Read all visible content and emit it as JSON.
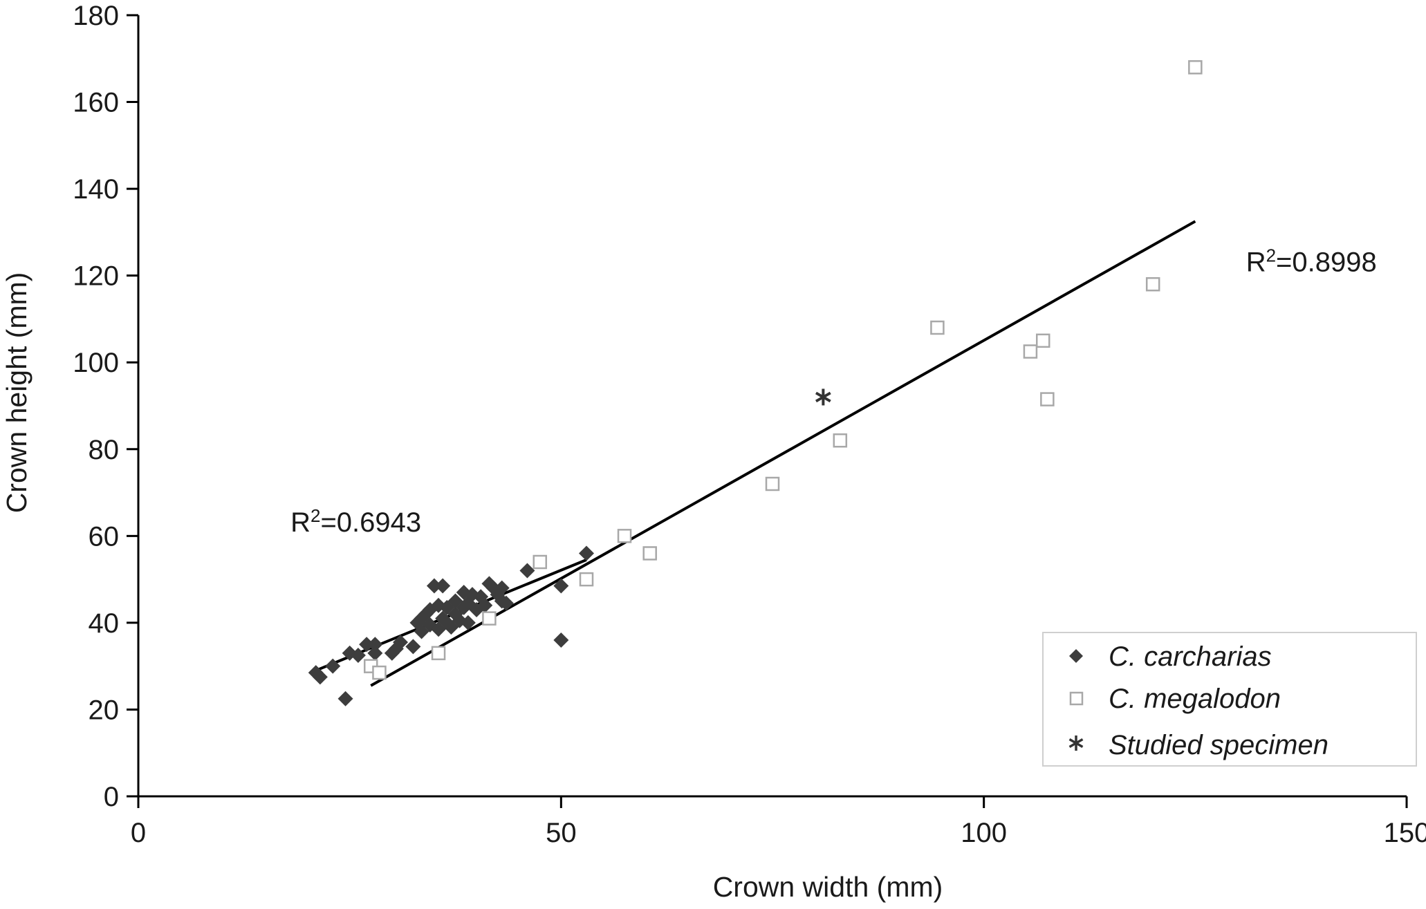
{
  "chart_data": {
    "type": "scatter",
    "xlabel": "Crown width (mm)",
    "ylabel": "Crown height (mm)",
    "xlim": [
      0,
      150
    ],
    "ylim": [
      0,
      180
    ],
    "xticks": [
      0,
      50,
      100,
      150
    ],
    "yticks": [
      0,
      20,
      40,
      60,
      80,
      100,
      120,
      140,
      160,
      180
    ],
    "grid": false,
    "legend_position": "bottom-right",
    "colors": {
      "carcharias": "#3d3d3d",
      "megalodon_stroke": "#a8a8a8",
      "studied": "#333333",
      "trend": "#000000"
    },
    "series": [
      {
        "name": "C. carcharias",
        "marker": "diamond",
        "points": [
          [
            21.0,
            28.5
          ],
          [
            21.5,
            27.5
          ],
          [
            23.0,
            30.0
          ],
          [
            24.5,
            22.5
          ],
          [
            25.0,
            33.0
          ],
          [
            26.0,
            32.5
          ],
          [
            27.0,
            35.0
          ],
          [
            28.0,
            33.0
          ],
          [
            28.0,
            35.0
          ],
          [
            30.0,
            33.0
          ],
          [
            30.5,
            34.0
          ],
          [
            31.0,
            35.5
          ],
          [
            32.5,
            34.5
          ],
          [
            33.0,
            40.0
          ],
          [
            33.5,
            38.0
          ],
          [
            33.5,
            41.0
          ],
          [
            34.0,
            42.0
          ],
          [
            34.5,
            39.5
          ],
          [
            34.5,
            43.0
          ],
          [
            35.0,
            48.5
          ],
          [
            35.5,
            38.5
          ],
          [
            35.5,
            44.0
          ],
          [
            36.0,
            41.0
          ],
          [
            36.0,
            48.5
          ],
          [
            36.5,
            40.0
          ],
          [
            36.5,
            43.5
          ],
          [
            37.0,
            39.0
          ],
          [
            37.5,
            42.0
          ],
          [
            37.5,
            45.0
          ],
          [
            38.0,
            40.5
          ],
          [
            38.5,
            43.5
          ],
          [
            38.5,
            47.0
          ],
          [
            39.0,
            40.0
          ],
          [
            39.0,
            44.5
          ],
          [
            39.5,
            46.5
          ],
          [
            40.0,
            43.0
          ],
          [
            40.5,
            46.0
          ],
          [
            41.0,
            44.0
          ],
          [
            41.5,
            49.0
          ],
          [
            42.0,
            48.0
          ],
          [
            42.5,
            46.5
          ],
          [
            43.0,
            45.0
          ],
          [
            43.0,
            48.0
          ],
          [
            43.5,
            44.5
          ],
          [
            46.0,
            52.0
          ],
          [
            50.0,
            48.5
          ],
          [
            50.0,
            36.0
          ],
          [
            53.0,
            56.0
          ]
        ]
      },
      {
        "name": "C. megalodon",
        "marker": "square",
        "points": [
          [
            27.5,
            30.0
          ],
          [
            28.5,
            28.5
          ],
          [
            35.5,
            33.0
          ],
          [
            41.5,
            41.0
          ],
          [
            47.5,
            54.0
          ],
          [
            53.0,
            50.0
          ],
          [
            57.5,
            60.0
          ],
          [
            60.5,
            56.0
          ],
          [
            75.0,
            72.0
          ],
          [
            83.0,
            82.0
          ],
          [
            94.5,
            108.0
          ],
          [
            105.5,
            102.5
          ],
          [
            107.0,
            105.0
          ],
          [
            107.5,
            91.5
          ],
          [
            120.0,
            118.0
          ],
          [
            125.0,
            168.0
          ]
        ]
      },
      {
        "name": "Studied specimen",
        "marker": "asterisk",
        "points": [
          [
            81.0,
            92.0
          ]
        ]
      }
    ],
    "trendlines": [
      {
        "series": "C. carcharias",
        "start": [
          21.0,
          29.0
        ],
        "end": [
          53.0,
          54.5
        ],
        "label": "R²=0.6943"
      },
      {
        "series": "C. megalodon",
        "start": [
          27.5,
          25.5
        ],
        "end": [
          125.0,
          132.5
        ],
        "label": "R²=0.8998"
      }
    ],
    "annotations": [
      {
        "text": "R²=0.6943",
        "x": 18,
        "y": 61
      },
      {
        "text": "R²=0.8998",
        "x": 131,
        "y": 121
      }
    ]
  }
}
